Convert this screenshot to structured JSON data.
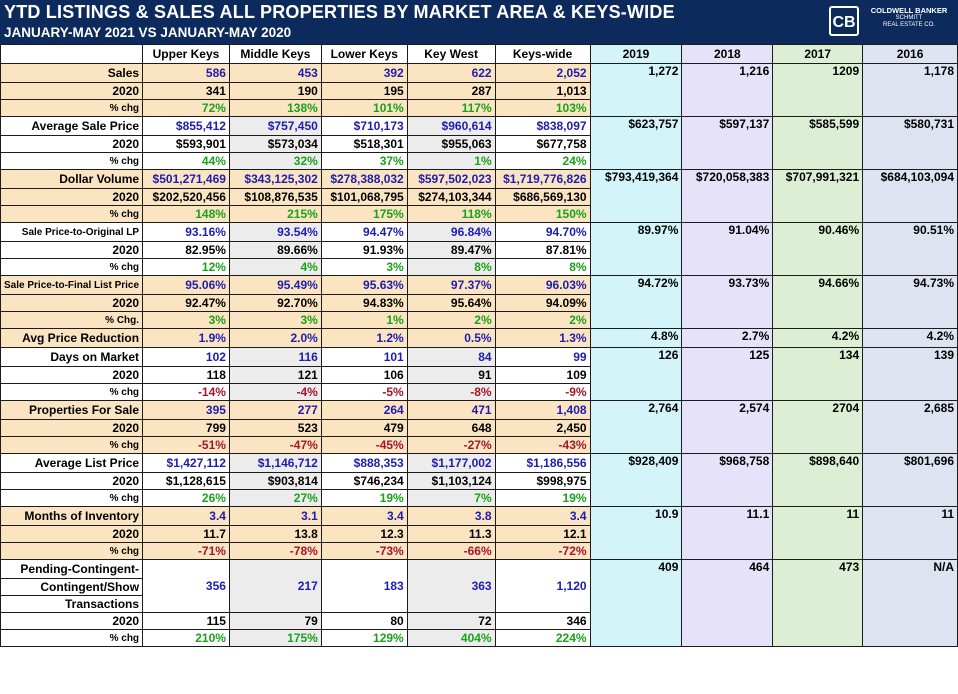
{
  "title": "YTD LISTINGS & SALES ALL PROPERTIES BY MARKET AREA & KEYS-WIDE",
  "subtitle": "JANUARY-MAY 2021 VS JANUARY-MAY 2020",
  "brand": {
    "mark": "CB",
    "line1": "COLDWELL BANKER",
    "line2": "SCHMITT",
    "line3": "REAL ESTATE CO."
  },
  "columns": [
    "Upper Keys",
    "Middle Keys",
    "Lower Keys",
    "Key West",
    "Keys-wide",
    "2019",
    "2018",
    "2017",
    "2016"
  ],
  "sections": [
    {
      "label": "Sales",
      "main": [
        "586",
        "453",
        "392",
        "622",
        "2,052"
      ],
      "prev_label": "2020",
      "prev": [
        "341",
        "190",
        "195",
        "287",
        "1,013"
      ],
      "chg_label": "% chg",
      "chg": [
        "72%",
        "138%",
        "101%",
        "117%",
        "103%"
      ],
      "years": [
        "1,272",
        "1,216",
        "1209",
        "1,178"
      ]
    },
    {
      "label": "Average Sale Price",
      "main": [
        "$855,412",
        "$757,450",
        "$710,173",
        "$960,614",
        "$838,097"
      ],
      "prev_label": "2020",
      "prev": [
        "$593,901",
        "$573,034",
        "$518,301",
        "$955,063",
        "$677,758"
      ],
      "chg_label": "% chg",
      "chg": [
        "44%",
        "32%",
        "37%",
        "1%",
        "24%"
      ],
      "years": [
        "$623,757",
        "$597,137",
        "$585,599",
        "$580,731"
      ]
    },
    {
      "label": "Dollar Volume",
      "main": [
        "$501,271,469",
        "$343,125,302",
        "$278,388,032",
        "$597,502,023",
        "$1,719,776,826"
      ],
      "prev_label": "2020",
      "prev": [
        "$202,520,456",
        "$108,876,535",
        "$101,068,795",
        "$274,103,344",
        "$686,569,130"
      ],
      "chg_label": "% chg",
      "chg": [
        "148%",
        "215%",
        "175%",
        "118%",
        "150%"
      ],
      "years": [
        "$793,419,364",
        "$720,058,383",
        "$707,991,321",
        "$684,103,094"
      ]
    },
    {
      "label": "Sale Price-to-Original LP",
      "main": [
        "93.16%",
        "93.54%",
        "94.47%",
        "96.84%",
        "94.70%"
      ],
      "prev_label": "2020",
      "prev": [
        "82.95%",
        "89.66%",
        "91.93%",
        "89.47%",
        "87.81%"
      ],
      "chg_label": "% chg",
      "chg": [
        "12%",
        "4%",
        "3%",
        "8%",
        "8%"
      ],
      "years": [
        "89.97%",
        "91.04%",
        "90.46%",
        "90.51%"
      ]
    },
    {
      "label": "Sale Price-to-Final List Price",
      "main": [
        "95.06%",
        "95.49%",
        "95.63%",
        "97.37%",
        "96.03%"
      ],
      "prev_label": "2020",
      "prev": [
        "92.47%",
        "92.70%",
        "94.83%",
        "95.64%",
        "94.09%"
      ],
      "chg_label": "% Chg.",
      "chg": [
        "3%",
        "3%",
        "1%",
        "2%",
        "2%"
      ],
      "years": [
        "94.72%",
        "93.73%",
        "94.66%",
        "94.73%"
      ]
    },
    {
      "label": "Avg Price Reduction",
      "main": [
        "1.9%",
        "2.0%",
        "1.2%",
        "0.5%",
        "1.3%"
      ],
      "years": [
        "4.8%",
        "2.7%",
        "4.2%",
        "4.2%"
      ]
    },
    {
      "label": "Days on Market",
      "main": [
        "102",
        "116",
        "101",
        "84",
        "99"
      ],
      "prev_label": "2020",
      "prev": [
        "118",
        "121",
        "106",
        "91",
        "109"
      ],
      "chg_label": "% chg",
      "chg": [
        "-14%",
        "-4%",
        "-5%",
        "-8%",
        "-9%"
      ],
      "years": [
        "126",
        "125",
        "134",
        "139"
      ]
    },
    {
      "label": "Properties For Sale",
      "main": [
        "395",
        "277",
        "264",
        "471",
        "1,408"
      ],
      "prev_label": "2020",
      "prev": [
        "799",
        "523",
        "479",
        "648",
        "2,450"
      ],
      "chg_label": "% chg",
      "chg": [
        "-51%",
        "-47%",
        "-45%",
        "-27%",
        "-43%"
      ],
      "years": [
        "2,764",
        "2,574",
        "2704",
        "2,685"
      ]
    },
    {
      "label": "Average List Price",
      "main": [
        "$1,427,112",
        "$1,146,712",
        "$888,353",
        "$1,177,002",
        "$1,186,556"
      ],
      "prev_label": "2020",
      "prev": [
        "$1,128,615",
        "$903,814",
        "$746,234",
        "$1,103,124",
        "$998,975"
      ],
      "chg_label": "% chg",
      "chg": [
        "26%",
        "27%",
        "19%",
        "7%",
        "19%"
      ],
      "years": [
        "$928,409",
        "$968,758",
        "$898,640",
        "$801,696"
      ]
    },
    {
      "label": "Months of Inventory",
      "main": [
        "3.4",
        "3.1",
        "3.4",
        "3.8",
        "3.4"
      ],
      "prev_label": "2020",
      "prev": [
        "11.7",
        "13.8",
        "12.3",
        "11.3",
        "12.1"
      ],
      "chg_label": "% chg",
      "chg": [
        "-71%",
        "-78%",
        "-73%",
        "-66%",
        "-72%"
      ],
      "years": [
        "10.9",
        "11.1",
        "11",
        "11"
      ]
    },
    {
      "label": "Pending-Contingent-",
      "label2": "Contingent/Show",
      "label3": "Transactions",
      "main": [
        "356",
        "217",
        "183",
        "363",
        "1,120"
      ],
      "prev_label": "2020",
      "prev": [
        "115",
        "79",
        "80",
        "72",
        "346"
      ],
      "chg_label": "% chg",
      "chg": [
        "210%",
        "175%",
        "129%",
        "404%",
        "224%"
      ],
      "years": [
        "409",
        "464",
        "473",
        "N/A"
      ]
    }
  ]
}
